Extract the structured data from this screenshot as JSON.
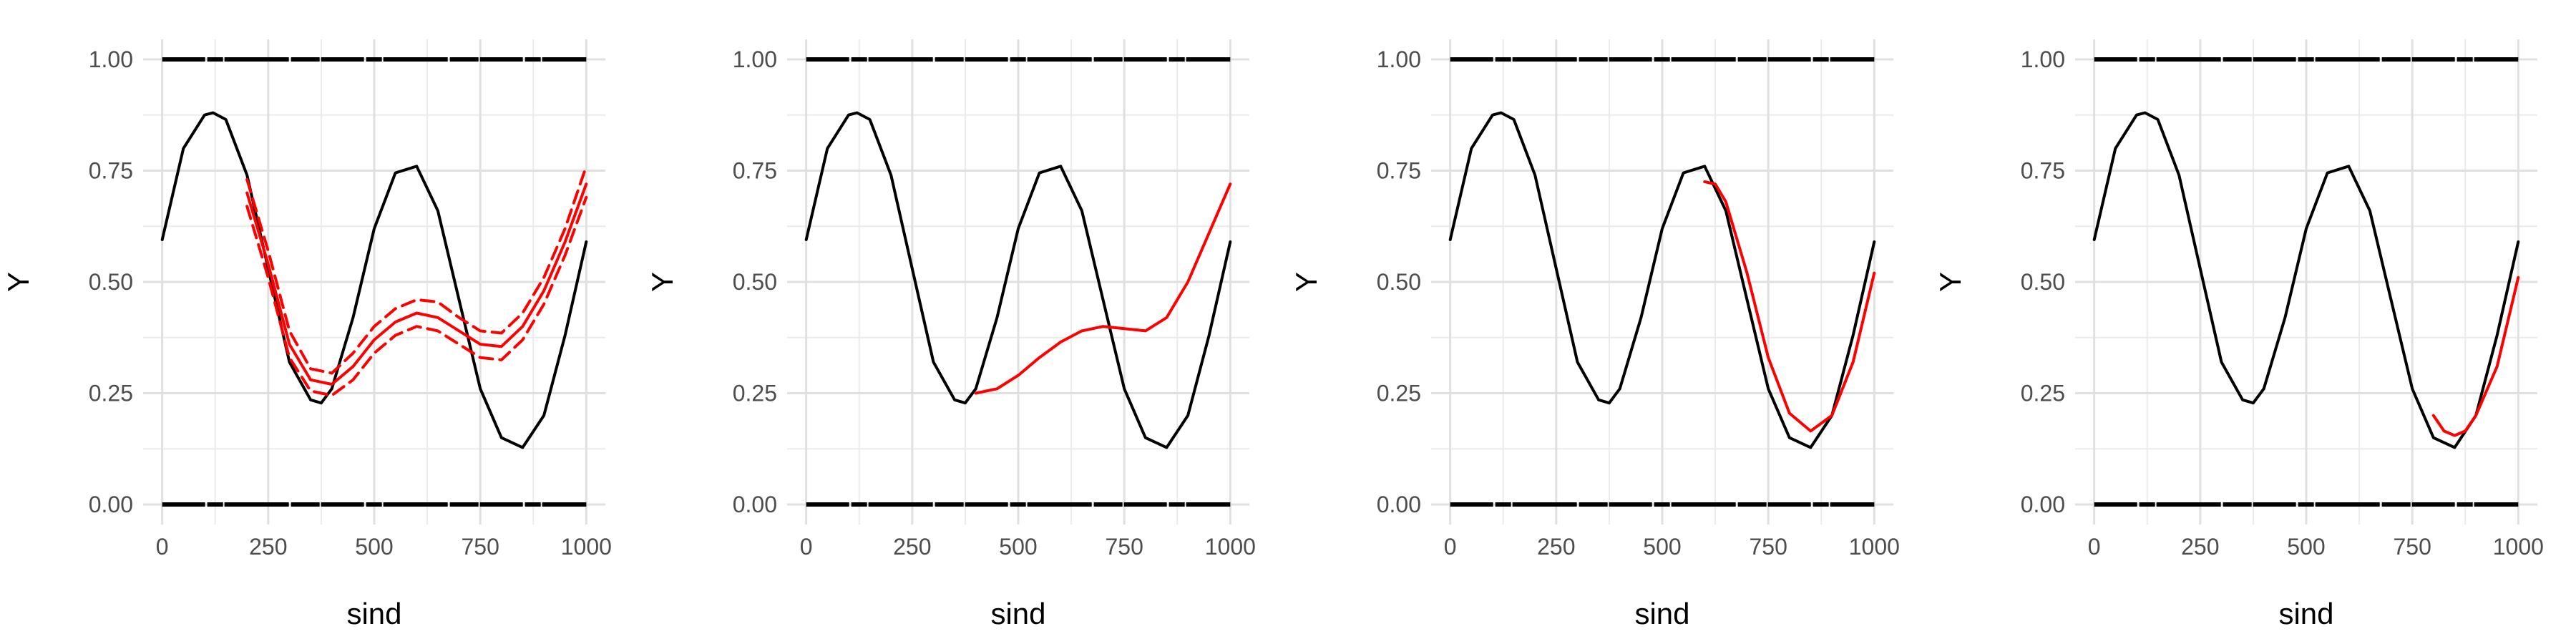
{
  "chart_data": [
    {
      "type": "line",
      "xlabel": "sind",
      "ylabel": "Y",
      "xlim": [
        0,
        1000
      ],
      "ylim": [
        0,
        1
      ],
      "x_ticks": [
        "0",
        "250",
        "500",
        "750",
        "1000"
      ],
      "y_ticks": [
        "0.00",
        "0.25",
        "0.50",
        "0.75",
        "1.00"
      ],
      "grid": true,
      "rug": {
        "values": [
          0,
          1
        ],
        "color": "#000000"
      },
      "series": [
        {
          "style": "truth",
          "color": "#000000",
          "dash": false,
          "x": [
            0,
            50,
            100,
            120,
            150,
            200,
            250,
            300,
            350,
            375,
            400,
            450,
            500,
            550,
            600,
            650,
            700,
            750,
            800,
            850,
            900,
            950,
            1000
          ],
          "y": [
            0.595,
            0.8,
            0.875,
            0.88,
            0.865,
            0.74,
            0.53,
            0.32,
            0.235,
            0.228,
            0.26,
            0.42,
            0.62,
            0.745,
            0.76,
            0.66,
            0.46,
            0.26,
            0.15,
            0.128,
            0.2,
            0.38,
            0.59
          ]
        },
        {
          "style": "fit",
          "color": "#ff0000",
          "dash": false,
          "x": [
            200,
            250,
            300,
            350,
            400,
            450,
            500,
            550,
            600,
            650,
            700,
            750,
            800,
            850,
            900,
            950,
            1000
          ],
          "y": [
            0.7,
            0.54,
            0.36,
            0.28,
            0.27,
            0.31,
            0.37,
            0.41,
            0.43,
            0.42,
            0.39,
            0.36,
            0.355,
            0.4,
            0.48,
            0.59,
            0.72
          ]
        },
        {
          "style": "band",
          "color": "#ff0000",
          "dash": true,
          "x": [
            200,
            250,
            300,
            350,
            400,
            450,
            500,
            550,
            600,
            650,
            700,
            750,
            800,
            850,
            900,
            950,
            1000
          ],
          "y": [
            0.73,
            0.57,
            0.39,
            0.305,
            0.295,
            0.34,
            0.4,
            0.44,
            0.46,
            0.455,
            0.42,
            0.39,
            0.385,
            0.43,
            0.51,
            0.62,
            0.76
          ]
        },
        {
          "style": "band",
          "color": "#ff0000",
          "dash": true,
          "x": [
            200,
            250,
            300,
            350,
            400,
            450,
            500,
            550,
            600,
            650,
            700,
            750,
            800,
            850,
            900,
            950,
            1000
          ],
          "y": [
            0.67,
            0.51,
            0.33,
            0.255,
            0.245,
            0.28,
            0.34,
            0.38,
            0.4,
            0.39,
            0.36,
            0.33,
            0.325,
            0.37,
            0.45,
            0.56,
            0.69
          ]
        }
      ]
    },
    {
      "type": "line",
      "xlabel": "sind",
      "ylabel": "Y",
      "xlim": [
        0,
        1000
      ],
      "ylim": [
        0,
        1
      ],
      "x_ticks": [
        "0",
        "250",
        "500",
        "750",
        "1000"
      ],
      "y_ticks": [
        "0.00",
        "0.25",
        "0.50",
        "0.75",
        "1.00"
      ],
      "grid": true,
      "rug": {
        "values": [
          0,
          1
        ],
        "color": "#000000"
      },
      "series": [
        {
          "style": "truth",
          "color": "#000000",
          "dash": false,
          "x": [
            0,
            50,
            100,
            120,
            150,
            200,
            250,
            300,
            350,
            375,
            400,
            450,
            500,
            550,
            600,
            650,
            700,
            750,
            800,
            850,
            900,
            950,
            1000
          ],
          "y": [
            0.595,
            0.8,
            0.875,
            0.88,
            0.865,
            0.74,
            0.53,
            0.32,
            0.235,
            0.228,
            0.26,
            0.42,
            0.62,
            0.745,
            0.76,
            0.66,
            0.46,
            0.26,
            0.15,
            0.128,
            0.2,
            0.38,
            0.59
          ]
        },
        {
          "style": "fit",
          "color": "#ff0000",
          "dash": false,
          "x": [
            400,
            450,
            500,
            550,
            600,
            650,
            700,
            750,
            800,
            850,
            900,
            950,
            1000
          ],
          "y": [
            0.25,
            0.26,
            0.29,
            0.33,
            0.365,
            0.39,
            0.4,
            0.395,
            0.39,
            0.42,
            0.5,
            0.61,
            0.72
          ]
        }
      ]
    },
    {
      "type": "line",
      "xlabel": "sind",
      "ylabel": "Y",
      "xlim": [
        0,
        1000
      ],
      "ylim": [
        0,
        1
      ],
      "x_ticks": [
        "0",
        "250",
        "500",
        "750",
        "1000"
      ],
      "y_ticks": [
        "0.00",
        "0.25",
        "0.50",
        "0.75",
        "1.00"
      ],
      "grid": true,
      "rug": {
        "values": [
          0,
          1
        ],
        "color": "#000000"
      },
      "series": [
        {
          "style": "truth",
          "color": "#000000",
          "dash": false,
          "x": [
            0,
            50,
            100,
            120,
            150,
            200,
            250,
            300,
            350,
            375,
            400,
            450,
            500,
            550,
            600,
            650,
            700,
            750,
            800,
            850,
            900,
            950,
            1000
          ],
          "y": [
            0.595,
            0.8,
            0.875,
            0.88,
            0.865,
            0.74,
            0.53,
            0.32,
            0.235,
            0.228,
            0.26,
            0.42,
            0.62,
            0.745,
            0.76,
            0.66,
            0.46,
            0.26,
            0.15,
            0.128,
            0.2,
            0.38,
            0.59
          ]
        },
        {
          "style": "fit",
          "color": "#ff0000",
          "dash": false,
          "x": [
            600,
            625,
            650,
            700,
            750,
            800,
            850,
            900,
            950,
            1000
          ],
          "y": [
            0.725,
            0.72,
            0.68,
            0.52,
            0.33,
            0.205,
            0.165,
            0.2,
            0.32,
            0.52
          ]
        }
      ]
    },
    {
      "type": "line",
      "xlabel": "sind",
      "ylabel": "Y",
      "xlim": [
        0,
        1000
      ],
      "ylim": [
        0,
        1
      ],
      "x_ticks": [
        "0",
        "250",
        "500",
        "750",
        "1000"
      ],
      "y_ticks": [
        "0.00",
        "0.25",
        "0.50",
        "0.75",
        "1.00"
      ],
      "grid": true,
      "rug": {
        "values": [
          0,
          1
        ],
        "color": "#000000"
      },
      "series": [
        {
          "style": "truth",
          "color": "#000000",
          "dash": false,
          "x": [
            0,
            50,
            100,
            120,
            150,
            200,
            250,
            300,
            350,
            375,
            400,
            450,
            500,
            550,
            600,
            650,
            700,
            750,
            800,
            850,
            900,
            950,
            1000
          ],
          "y": [
            0.595,
            0.8,
            0.875,
            0.88,
            0.865,
            0.74,
            0.53,
            0.32,
            0.235,
            0.228,
            0.26,
            0.42,
            0.62,
            0.745,
            0.76,
            0.66,
            0.46,
            0.26,
            0.15,
            0.128,
            0.2,
            0.38,
            0.59
          ]
        },
        {
          "style": "fit",
          "color": "#ff0000",
          "dash": false,
          "x": [
            800,
            825,
            850,
            875,
            900,
            950,
            1000
          ],
          "y": [
            0.2,
            0.165,
            0.155,
            0.165,
            0.2,
            0.31,
            0.51
          ]
        }
      ]
    }
  ]
}
